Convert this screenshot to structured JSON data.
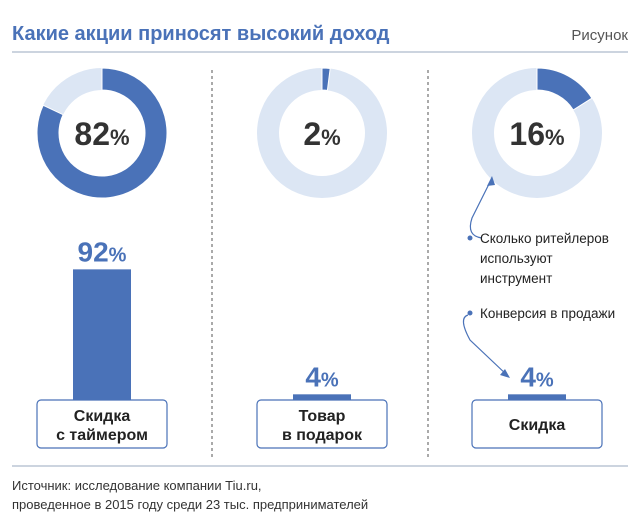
{
  "header": {
    "title": "Какие акции приносят высокий доход",
    "figure_label": "Рисунок"
  },
  "legend": {
    "retailers_lines": [
      "Сколько ритейлеров",
      "используют",
      "инструмент"
    ],
    "conversion": "Конверсия в продажи"
  },
  "source_lines": [
    "Источник: исследование компании Tiu.ru,",
    "проведенное в 2015 году среди 23 тыс. предпринимателей"
  ],
  "colors": {
    "accent": "#4a72b8",
    "light": "#dce6f4",
    "text": "#222222"
  },
  "chart_data": {
    "type": "bar",
    "categories": [
      "Скидка с таймером",
      "Товар в подарок",
      "Скидка"
    ],
    "category_lines": [
      [
        "Скидка",
        "с таймером"
      ],
      [
        "Товар",
        "в подарок"
      ],
      [
        "Скидка"
      ]
    ],
    "series": [
      {
        "name": "Сколько ритейлеров используют инструмент",
        "values": [
          82,
          2,
          16
        ],
        "display": "donut"
      },
      {
        "name": "Конверсия в продажи",
        "values": [
          92,
          4,
          4
        ],
        "display": "bar"
      }
    ],
    "unit": "%",
    "ylim": [
      0,
      100
    ]
  }
}
